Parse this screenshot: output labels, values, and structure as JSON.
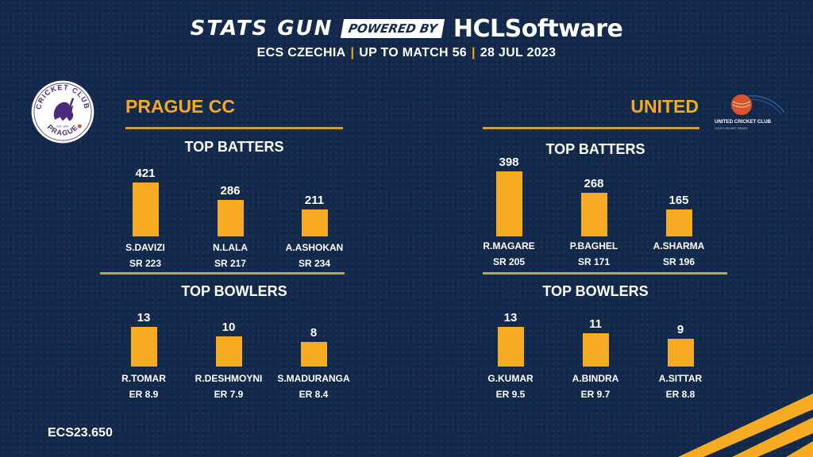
{
  "header": {
    "brand_stats": "STATS GUN",
    "brand_powered": "POWERED BY",
    "brand_hcl": "HCLSoftware",
    "subtitle_parts": [
      "ECS CZECHIA",
      "UP TO MATCH 56",
      "28 JUL 2023"
    ],
    "separator": "|"
  },
  "teams": {
    "left": {
      "name": "PRAGUE CC",
      "logo_text_top": "CRICKET CLUB",
      "logo_text_bottom": "PRAGUE",
      "logo_est": "EST. 1997"
    },
    "right": {
      "name": "UNITED",
      "logo_text": "UNITED CRICKET CLUB",
      "logo_subtext": "YOUTH ON WET GRASS"
    }
  },
  "chart_data": [
    {
      "type": "bar",
      "team": "PRAGUE CC",
      "title": "TOP BATTERS",
      "categories": [
        "S.DAVIZI",
        "N.LALA",
        "A.ASHOKAN"
      ],
      "values": [
        421,
        286,
        211
      ],
      "annotations": [
        "SR 223",
        "SR 217",
        "SR 234"
      ]
    },
    {
      "type": "bar",
      "team": "PRAGUE CC",
      "title": "TOP BOWLERS",
      "categories": [
        "R.TOMAR",
        "R.DESHMOYNI",
        "S.MADURANGA"
      ],
      "values": [
        13,
        10,
        8
      ],
      "annotations": [
        "ER 8.9",
        "ER 7.9",
        "ER 8.4"
      ]
    },
    {
      "type": "bar",
      "team": "UNITED",
      "title": "TOP BATTERS",
      "categories": [
        "R.MAGARE",
        "P.BAGHEL",
        "A.SHARMA"
      ],
      "values": [
        398,
        268,
        165
      ],
      "annotations": [
        "SR 205",
        "SR 171",
        "SR 196"
      ]
    },
    {
      "type": "bar",
      "team": "UNITED",
      "title": "TOP BOWLERS",
      "categories": [
        "G.KUMAR",
        "A.BINDRA",
        "A.SITTAR"
      ],
      "values": [
        13,
        11,
        9
      ],
      "annotations": [
        "ER 9.5",
        "ER 9.7",
        "ER 8.8"
      ]
    }
  ],
  "footer": {
    "code": "ECS23.650"
  },
  "colors": {
    "background": "#13294b",
    "accent": "#f6ab22",
    "gold_line": "#c9a23c",
    "logo_purple": "#4b2a7a",
    "ball_red": "#d9532b"
  }
}
